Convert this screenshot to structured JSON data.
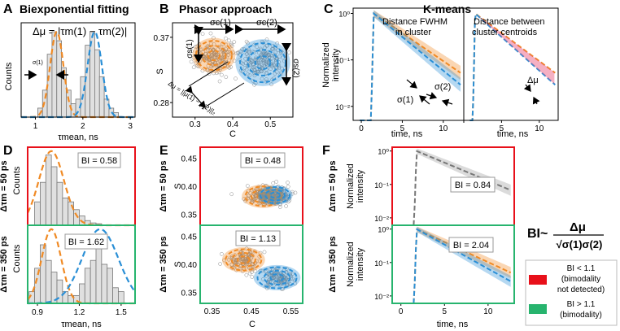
{
  "panels": {
    "A": {
      "letter": "A",
      "title": "Biexponential fitting",
      "equation": "Δμ = |τm(1) − τm(2)|",
      "sigma_label": "σ(1)",
      "xlabel": "τmean, ns",
      "ylabel": "Counts",
      "xticks": [
        "1",
        "2",
        "3"
      ]
    },
    "B": {
      "letter": "B",
      "title": "Phasor approach",
      "xlabel": "C",
      "ylabel": "S",
      "xticks": [
        "0.3",
        "0.4",
        "0.5"
      ],
      "yticks": [
        "0.37",
        "0.28"
      ],
      "sc1": "σc(1)",
      "sc2": "σc(2)",
      "ss1": "σs(1)",
      "ss2": "σs(2)",
      "dmu": "Δμ = ||μ(1) − μ(2)||₂"
    },
    "C": {
      "letter": "C",
      "title": "K-means",
      "ylabel": "Normalized intensity",
      "xlabel": "time, ns",
      "xticks": [
        "0",
        "5",
        "10"
      ],
      "yticks": [
        "10⁰",
        "10⁻¹",
        "10⁻²"
      ],
      "left_label": [
        "Distance FWHM",
        "in cluster"
      ],
      "right_label": [
        "Distance between",
        "cluster centroids"
      ],
      "s1": "σ(1)",
      "s2": "σ(2)",
      "dmu": "Δμ"
    },
    "D": {
      "letter": "D",
      "xlabel": "τmean, ns",
      "ylabel": "Counts",
      "xticks": [
        "0.9",
        "1.2",
        "1.5"
      ],
      "top": {
        "row_label": "Δτm = 50 ps",
        "bi": "BI = 0.58"
      },
      "bottom": {
        "row_label": "Δτm = 350 ps",
        "bi": "BI = 1.62"
      }
    },
    "E": {
      "letter": "E",
      "xlabel": "C",
      "ylabel": "S",
      "xticks": [
        "0.35",
        "0.45",
        "0.55"
      ],
      "yticks": [
        "0.45",
        "0.40",
        "0.35"
      ],
      "top": {
        "row_label": "Δτm = 50 ps",
        "bi": "BI = 0.48"
      },
      "bottom": {
        "row_label": "Δτm = 350 ps",
        "bi": "BI = 1.13"
      }
    },
    "F": {
      "letter": "F",
      "xlabel": "time, ns",
      "ylabel": "Normalized intensity",
      "xticks": [
        "0",
        "5",
        "10"
      ],
      "yticks": [
        "10⁰",
        "10⁻¹",
        "10⁻²"
      ],
      "top": {
        "row_label": "Δτm = 50 ps",
        "bi": "BI = 0.84"
      },
      "bottom": {
        "row_label": "Δτm = 350 ps",
        "bi": "BI = 2.04"
      }
    }
  },
  "formula": {
    "lhs": "BI~",
    "num": "Δμ",
    "den": "√σ(1)σ(2)"
  },
  "legend": [
    {
      "color": "#e8101a",
      "label": "BI < 1.1 (bimodality not detected)",
      "lines": [
        "BI < 1.1",
        "(bimodality",
        "not detected)"
      ]
    },
    {
      "color": "#27b46e",
      "label": "BI > 1.1 (bimodality)",
      "lines": [
        "BI > 1.1",
        "(bimodality)"
      ]
    }
  ],
  "colors": {
    "orange": "#f08a24",
    "blue": "#2a8fd6",
    "gray": "#808080",
    "red": "#e8101a",
    "green": "#27b46e"
  },
  "chart_data": [
    {
      "id": "A",
      "type": "bar",
      "title": "Biexponential fitting",
      "xlabel": "τmean, ns",
      "ylabel": "Counts",
      "xlim": [
        0.7,
        3.1
      ],
      "bins": [
        1.1,
        1.2,
        1.3,
        1.4,
        1.5,
        1.6,
        1.7,
        1.8,
        1.9,
        2.0,
        2.1,
        2.2,
        2.3,
        2.4,
        2.5,
        2.6,
        2.7
      ],
      "values": [
        0.1,
        0.3,
        0.7,
        0.95,
        0.85,
        0.55,
        0.3,
        0.15,
        0.2,
        0.45,
        0.8,
        0.95,
        0.75,
        0.45,
        0.2,
        0.1,
        0.05
      ],
      "series": [
        {
          "name": "component 1",
          "mean": 1.45,
          "sd": 0.14
        },
        {
          "name": "component 2",
          "mean": 2.25,
          "sd": 0.15
        }
      ]
    },
    {
      "id": "B",
      "type": "scatter",
      "title": "Phasor approach",
      "xlabel": "C",
      "ylabel": "S",
      "xlim": [
        0.24,
        0.56
      ],
      "ylim": [
        0.26,
        0.39
      ],
      "clusters": [
        {
          "name": "cluster 1",
          "center": [
            0.35,
            0.345
          ]
        },
        {
          "name": "cluster 2",
          "center": [
            0.48,
            0.335
          ]
        }
      ]
    },
    {
      "id": "C",
      "type": "line",
      "title": "K-means",
      "xlabel": "time, ns",
      "ylabel": "Normalized intensity",
      "xlim": [
        -1,
        12.5
      ],
      "ylim_log": [
        0.005,
        1.3
      ],
      "peak_time": 1.5,
      "series": [
        {
          "name": "cluster 1",
          "tau": 3.6
        },
        {
          "name": "cluster 2",
          "tau": 3.0
        }
      ]
    },
    {
      "id": "D-top",
      "type": "bar",
      "xlabel": "τmean, ns",
      "ylabel": "Counts",
      "xlim": [
        0.83,
        1.6
      ],
      "bins": [
        0.9,
        0.94,
        0.98,
        1.02,
        1.06,
        1.1,
        1.14,
        1.18,
        1.22,
        1.26,
        1.3,
        1.34,
        1.38,
        1.42
      ],
      "values": [
        0.3,
        0.55,
        0.9,
        0.75,
        0.55,
        0.35,
        0.3,
        0.2,
        0.12,
        0.06,
        0.03,
        0.02,
        0.0,
        0.0
      ],
      "series": [
        {
          "name": "fit",
          "mean": 1.0,
          "sd": 0.09
        }
      ],
      "bi": 0.58
    },
    {
      "id": "D-bottom",
      "type": "bar",
      "xlabel": "τmean, ns",
      "ylabel": "Counts",
      "xlim": [
        0.83,
        1.6
      ],
      "bins": [
        0.86,
        0.9,
        0.94,
        0.98,
        1.02,
        1.06,
        1.1,
        1.14,
        1.18,
        1.22,
        1.26,
        1.3,
        1.34,
        1.38,
        1.42,
        1.46,
        1.5
      ],
      "values": [
        0.15,
        0.45,
        0.75,
        0.55,
        0.4,
        0.3,
        0.15,
        0.1,
        0.1,
        0.25,
        0.45,
        0.55,
        0.75,
        0.5,
        0.45,
        0.2,
        0.15
      ],
      "series": [
        {
          "name": "fit 1",
          "mean": 1.0,
          "sd": 0.07
        },
        {
          "name": "fit 2",
          "mean": 1.35,
          "sd": 0.13
        }
      ],
      "bi": 1.62
    },
    {
      "id": "E-top",
      "type": "scatter",
      "xlabel": "C",
      "ylabel": "S",
      "xlim": [
        0.32,
        0.58
      ],
      "ylim": [
        0.33,
        0.47
      ],
      "clusters": [
        {
          "name": "cluster 1",
          "center": [
            0.48,
            0.382
          ]
        },
        {
          "name": "cluster 2",
          "center": [
            0.51,
            0.384
          ]
        }
      ],
      "bi": 0.48
    },
    {
      "id": "E-bottom",
      "type": "scatter",
      "xlabel": "C",
      "ylabel": "S",
      "xlim": [
        0.32,
        0.58
      ],
      "ylim": [
        0.33,
        0.47
      ],
      "clusters": [
        {
          "name": "cluster 1",
          "center": [
            0.43,
            0.408
          ]
        },
        {
          "name": "cluster 2",
          "center": [
            0.515,
            0.376
          ]
        }
      ],
      "bi": 1.13
    },
    {
      "id": "F-top",
      "type": "line",
      "xlabel": "time, ns",
      "ylabel": "Normalized intensity",
      "xlim": [
        -1,
        13
      ],
      "peak_time": 1.8,
      "series": [
        {
          "name": "mean decay",
          "tau": 4.0
        }
      ],
      "bi": 0.84
    },
    {
      "id": "F-bottom",
      "type": "line",
      "xlabel": "time, ns",
      "ylabel": "Normalized intensity",
      "xlim": [
        -1,
        13
      ],
      "peak_time": 1.8,
      "series": [
        {
          "name": "cluster 1",
          "tau": 3.6
        },
        {
          "name": "cluster 2",
          "tau": 3.0
        }
      ],
      "bi": 2.04
    }
  ]
}
